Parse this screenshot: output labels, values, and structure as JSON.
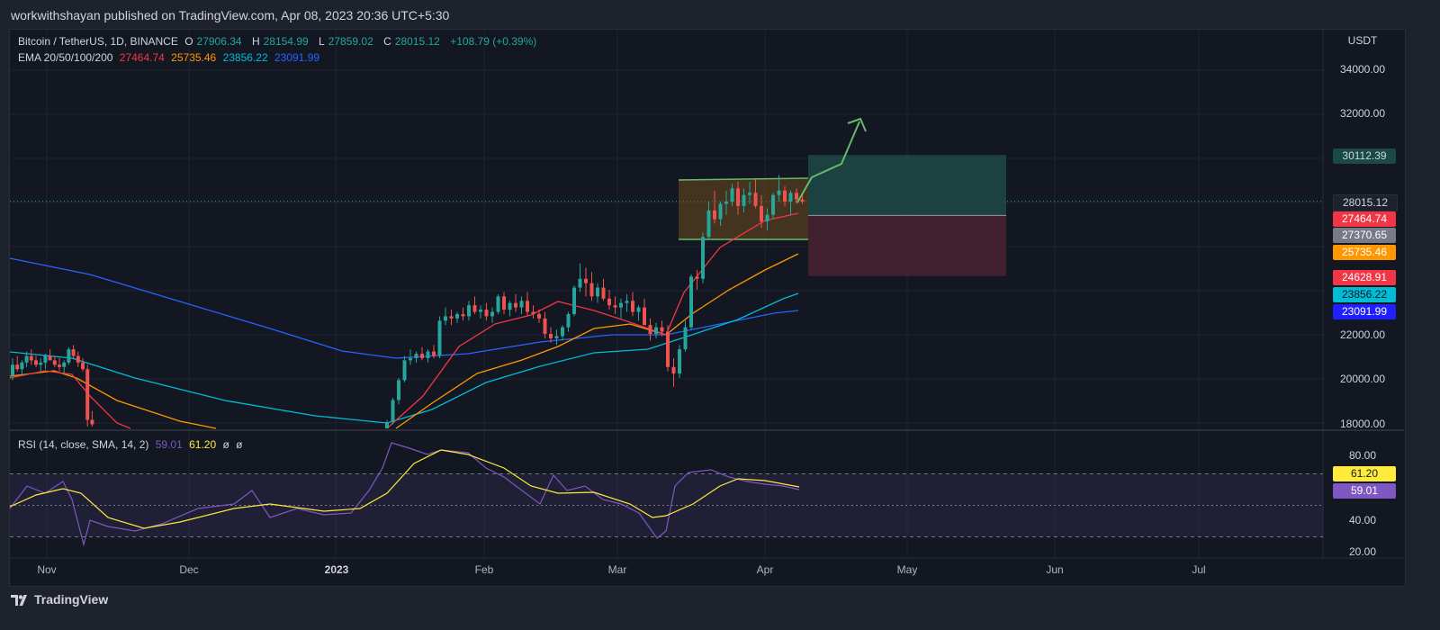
{
  "header": {
    "publish_text": "workwithshayan published on TradingView.com, Apr 08, 2023 20:36 UTC+5:30"
  },
  "legend": {
    "symbol": "Bitcoin / TetherUS, 1D, BINANCE",
    "o_label": "O",
    "o_value": "27906.34",
    "h_label": "H",
    "h_value": "28154.99",
    "l_label": "L",
    "l_value": "27859.02",
    "c_label": "C",
    "c_value": "28015.12",
    "change": "+108.79 (+0.39%)",
    "ema_label": "EMA 20/50/100/200",
    "ema20": "27464.74",
    "ema50": "25735.46",
    "ema100": "23856.22",
    "ema200": "23091.99"
  },
  "rsi_legend": {
    "label": "RSI (14, close, SMA, 14, 2)",
    "rsi": "59.01",
    "sma": "61.20",
    "extra1": "ø",
    "extra2": "ø"
  },
  "price_axis": {
    "currency": "USDT",
    "ticks": [
      "34000.00",
      "32000.00",
      "22000.00",
      "20000.00",
      "18000.00"
    ],
    "tags": {
      "target": "30112.39",
      "last": "28015.12",
      "ema20": "27464.74",
      "entry": "27370.65",
      "ema50": "25735.46",
      "stop": "24628.91",
      "ema100": "23856.22",
      "ema200": "23091.99"
    }
  },
  "rsi_axis": {
    "ticks": [
      "80.00",
      "40.00",
      "20.00"
    ],
    "tags": {
      "sma": "61.20",
      "rsi": "59.01"
    }
  },
  "time_axis": [
    "Nov",
    "Dec",
    "2023",
    "Feb",
    "Mar",
    "Apr",
    "May",
    "Jun",
    "Jul"
  ],
  "footer": {
    "brand": "TradingView"
  },
  "colors": {
    "up": "#26a69a",
    "down": "#ef5350",
    "ema20": "#f23645",
    "ema50": "#ff9800",
    "ema100": "#00bcd4",
    "ema200": "#2962ff",
    "rsi": "#7e57c2",
    "rsi_sma": "#ffeb3b"
  },
  "chart_data": {
    "type": "candlestick",
    "symbol": "BTCUSDT",
    "timeframe": "1D",
    "ylim": [
      17800,
      35000
    ],
    "candles": [
      [
        20100,
        20900,
        19900,
        20600
      ],
      [
        20600,
        21000,
        20300,
        20400
      ],
      [
        20400,
        20800,
        20100,
        20700
      ],
      [
        20700,
        21200,
        20500,
        21000
      ],
      [
        21000,
        21300,
        20600,
        20800
      ],
      [
        20800,
        21000,
        20500,
        20600
      ],
      [
        20600,
        20900,
        20300,
        20700
      ],
      [
        20700,
        21100,
        20400,
        21000
      ],
      [
        21000,
        21300,
        20800,
        20800
      ],
      [
        20800,
        21000,
        20500,
        20600
      ],
      [
        20600,
        20900,
        20300,
        20500
      ],
      [
        20500,
        20800,
        20200,
        20700
      ],
      [
        20700,
        21400,
        20600,
        21300
      ],
      [
        21300,
        21500,
        20900,
        21000
      ],
      [
        21000,
        21200,
        20500,
        20700
      ],
      [
        20700,
        20900,
        20300,
        20400
      ],
      [
        20400,
        20600,
        17800,
        18100
      ],
      [
        18100,
        18500,
        17800,
        17900
      ]
    ],
    "candles_late": [
      [
        17400,
        18100,
        17300,
        18000
      ],
      [
        18000,
        19100,
        17900,
        19000
      ],
      [
        19000,
        20000,
        18800,
        19900
      ],
      [
        19900,
        21000,
        19800,
        20800
      ],
      [
        20800,
        21300,
        20600,
        20900
      ],
      [
        20900,
        21200,
        20700,
        21100
      ],
      [
        21100,
        21400,
        20800,
        20900
      ],
      [
        20900,
        21300,
        20700,
        21200
      ],
      [
        21200,
        21500,
        20900,
        21000
      ],
      [
        21000,
        22800,
        20900,
        22600
      ],
      [
        22600,
        23200,
        22400,
        22800
      ],
      [
        22800,
        23100,
        22400,
        22700
      ],
      [
        22700,
        23000,
        22500,
        22900
      ],
      [
        22900,
        23200,
        22600,
        22800
      ],
      [
        22800,
        23500,
        22600,
        23300
      ],
      [
        23300,
        23700,
        22900,
        23000
      ],
      [
        23000,
        23300,
        22700,
        23100
      ],
      [
        23100,
        23400,
        22600,
        22800
      ],
      [
        22800,
        23200,
        22500,
        23000
      ],
      [
        23000,
        23800,
        22900,
        23700
      ],
      [
        23700,
        23900,
        22900,
        23100
      ],
      [
        23100,
        23500,
        22800,
        23400
      ],
      [
        23400,
        23800,
        23000,
        23200
      ],
      [
        23200,
        23700,
        22900,
        23500
      ],
      [
        23500,
        23900,
        22800,
        23000
      ],
      [
        23000,
        23300,
        22700,
        22900
      ],
      [
        22900,
        23100,
        22500,
        22700
      ],
      [
        22700,
        23000,
        21800,
        22000
      ],
      [
        22000,
        22300,
        21600,
        21800
      ],
      [
        21800,
        22200,
        21500,
        21900
      ],
      [
        21900,
        22400,
        21700,
        22300
      ],
      [
        22300,
        23000,
        22100,
        22900
      ],
      [
        22900,
        24200,
        22800,
        24100
      ],
      [
        24100,
        25200,
        23900,
        24500
      ],
      [
        24500,
        25000,
        23700,
        24300
      ],
      [
        24300,
        24800,
        23500,
        23700
      ],
      [
        23700,
        24300,
        23400,
        24100
      ],
      [
        24100,
        24500,
        23500,
        23600
      ],
      [
        23600,
        24000,
        23100,
        23300
      ],
      [
        23300,
        23700,
        22900,
        23200
      ],
      [
        23200,
        23600,
        22700,
        23400
      ],
      [
        23400,
        23800,
        23000,
        23500
      ],
      [
        23500,
        23900,
        22800,
        23000
      ],
      [
        23000,
        23300,
        22600,
        23200
      ],
      [
        23200,
        23600,
        22500,
        22400
      ],
      [
        22400,
        22700,
        21700,
        22000
      ],
      [
        22000,
        22500,
        21800,
        22300
      ],
      [
        22300,
        22600,
        21900,
        22100
      ],
      [
        22100,
        22400,
        20300,
        20500
      ],
      [
        20500,
        20900,
        19600,
        20200
      ],
      [
        20200,
        21500,
        20000,
        21300
      ],
      [
        21300,
        22600,
        21200,
        22300
      ],
      [
        22300,
        24700,
        22200,
        24600
      ],
      [
        24600,
        24900,
        24000,
        24500
      ],
      [
        24500,
        26600,
        24300,
        26400
      ],
      [
        26400,
        28000,
        26300,
        27600
      ],
      [
        27600,
        28500,
        27000,
        27200
      ],
      [
        27200,
        28000,
        26900,
        27900
      ],
      [
        27900,
        28500,
        27400,
        28000
      ],
      [
        28000,
        28800,
        27800,
        28600
      ],
      [
        28600,
        28900,
        27400,
        27800
      ],
      [
        27800,
        28600,
        27500,
        28300
      ],
      [
        28300,
        28900,
        27900,
        28400
      ],
      [
        28400,
        29000,
        27700,
        27800
      ],
      [
        27800,
        28300,
        26800,
        27100
      ],
      [
        27100,
        27700,
        26700,
        27400
      ],
      [
        27400,
        28400,
        27200,
        28300
      ],
      [
        28300,
        29200,
        28000,
        28500
      ],
      [
        28500,
        28700,
        27800,
        28000
      ],
      [
        28000,
        28500,
        27400,
        28400
      ],
      [
        28400,
        28600,
        27900,
        28100
      ],
      [
        28100,
        28400,
        27900,
        28000
      ]
    ],
    "ema_last": {
      "ema20": 27464.74,
      "ema50": 25735.46,
      "ema100": 23856.22,
      "ema200": 23091.99
    },
    "position": {
      "target": 30112.39,
      "entry": 27370.65,
      "stop": 24628.91
    },
    "rsi": {
      "value": 59.01,
      "sma": 61.2,
      "levels": [
        70,
        50,
        30
      ]
    }
  }
}
